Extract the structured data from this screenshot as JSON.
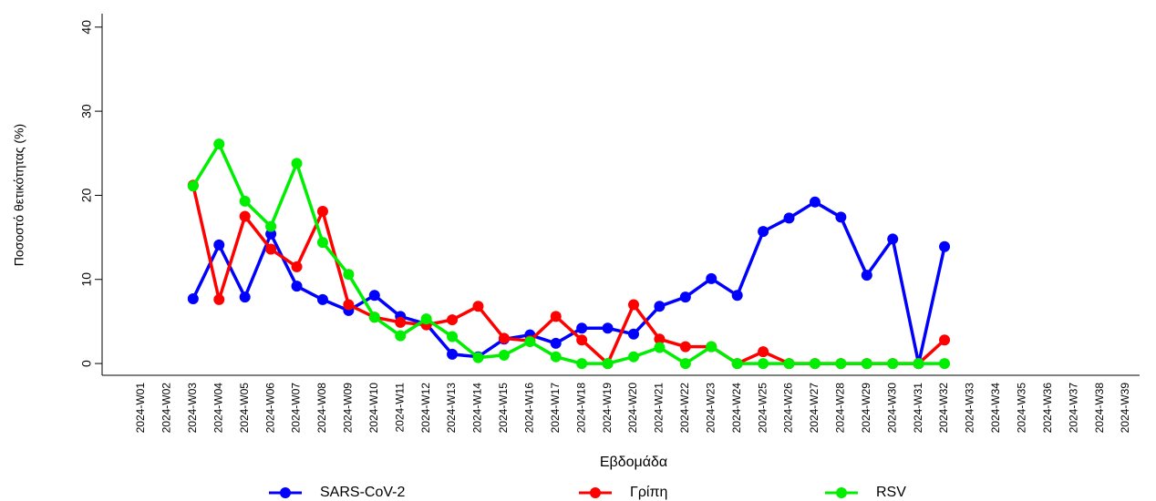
{
  "chart_data": {
    "type": "line",
    "y_label": "Ποσοστό θετικότητας (%)",
    "x_label": "Εβδομάδα",
    "categories": [
      "2024-W01",
      "2024-W02",
      "2024-W03",
      "2024-W04",
      "2024-W05",
      "2024-W06",
      "2024-W07",
      "2024-W08",
      "2024-W09",
      "2024-W10",
      "2024-W11",
      "2024-W12",
      "2024-W13",
      "2024-W14",
      "2024-W15",
      "2024-W16",
      "2024-W17",
      "2024-W18",
      "2024-W19",
      "2024-W20",
      "2024-W21",
      "2024-W22",
      "2024-W23",
      "2024-W24",
      "2024-W25",
      "2024-W26",
      "2024-W27",
      "2024-W28",
      "2024-W29",
      "2024-W30",
      "2024-W31",
      "2024-W32",
      "2024-W33",
      "2024-W34",
      "2024-W35",
      "2024-W36",
      "2024-W37",
      "2024-W38",
      "2024-W39"
    ],
    "series": [
      {
        "name": "SARS-CoV-2",
        "color": "#0000ff",
        "values": [
          null,
          null,
          7.7,
          14.1,
          7.9,
          15.4,
          9.2,
          7.6,
          6.3,
          8.1,
          5.6,
          4.7,
          1.1,
          0.8,
          2.9,
          3.4,
          2.4,
          4.2,
          4.2,
          3.5,
          6.8,
          7.9,
          10.1,
          8.1,
          15.7,
          17.3,
          19.2,
          17.4,
          10.5,
          14.8,
          0,
          13.9,
          null,
          null,
          null,
          null,
          null,
          null,
          null
        ]
      },
      {
        "name": "Γρίπη",
        "color": "#ff0000",
        "values": [
          null,
          null,
          21.2,
          7.6,
          17.5,
          13.6,
          11.5,
          18.1,
          7.0,
          5.5,
          4.9,
          4.6,
          5.2,
          6.8,
          3.0,
          2.7,
          5.6,
          2.8,
          0,
          7.0,
          2.9,
          2.0,
          2.0,
          0,
          1.4,
          0,
          0,
          0,
          0,
          0,
          0,
          2.8,
          null,
          null,
          null,
          null,
          null,
          null,
          null
        ]
      },
      {
        "name": "RSV",
        "color": "#00ee00",
        "values": [
          null,
          null,
          21.1,
          26.1,
          19.3,
          16.3,
          23.8,
          14.4,
          10.6,
          5.5,
          3.3,
          5.3,
          3.2,
          0.7,
          1.0,
          2.6,
          0.8,
          0,
          0,
          0.8,
          1.9,
          0,
          2.0,
          0,
          0,
          0,
          0,
          0,
          0,
          0,
          0,
          0,
          null,
          null,
          null,
          null,
          null,
          null,
          null
        ]
      }
    ],
    "ylim": [
      -1.4,
      41.6
    ],
    "yticks": [
      0,
      10,
      20,
      30,
      40
    ]
  }
}
